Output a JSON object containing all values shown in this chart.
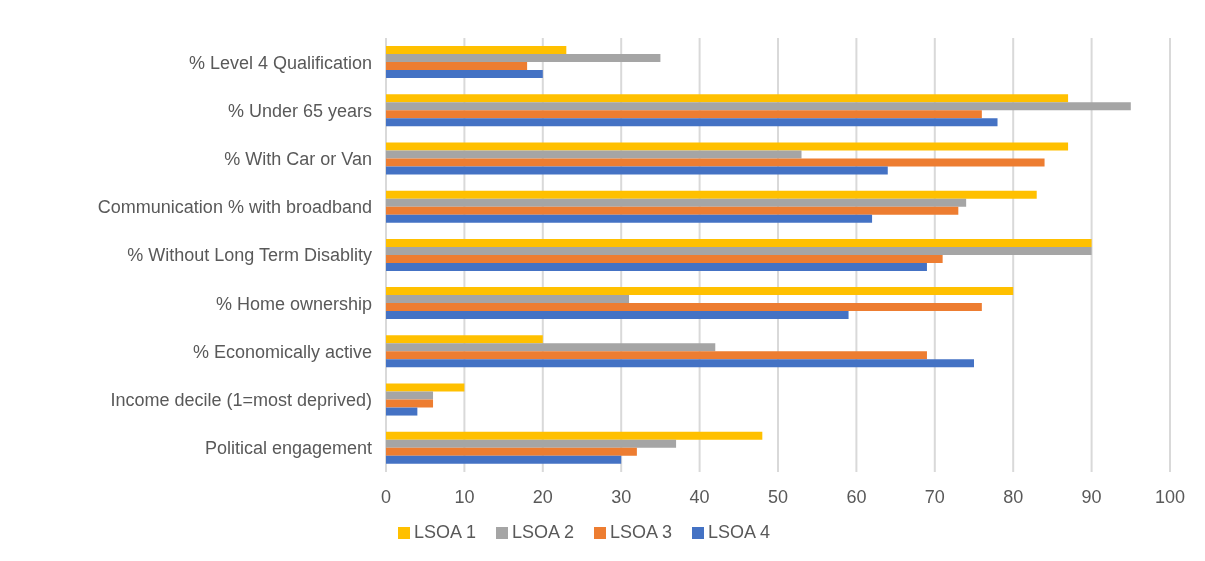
{
  "chart_data": {
    "type": "bar",
    "orientation": "horizontal",
    "categories": [
      "% Level 4 Qualification",
      "% Under 65 years",
      "% With Car or Van",
      "Communication % with broadband",
      "% Without Long Term Disablity",
      "% Home ownership",
      "% Economically active",
      "Income decile (1=most deprived)",
      "Political engagement"
    ],
    "series": [
      {
        "name": "LSOA 1",
        "color": "#ffc000",
        "values": [
          23,
          87,
          87,
          83,
          90,
          80,
          20,
          10,
          48
        ]
      },
      {
        "name": "LSOA 2",
        "color": "#a5a5a5",
        "values": [
          35,
          95,
          53,
          74,
          90,
          31,
          42,
          6,
          37
        ]
      },
      {
        "name": "LSOA 3",
        "color": "#ed7d31",
        "values": [
          18,
          76,
          84,
          73,
          71,
          76,
          69,
          6,
          32
        ]
      },
      {
        "name": "LSOA 4",
        "color": "#4472c4",
        "values": [
          20,
          78,
          64,
          62,
          69,
          59,
          75,
          4,
          30
        ]
      }
    ],
    "xlim": [
      0,
      100
    ],
    "xticks": [
      0,
      10,
      20,
      30,
      40,
      50,
      60,
      70,
      80,
      90,
      100
    ],
    "grid": "x",
    "legend": "bottom"
  }
}
